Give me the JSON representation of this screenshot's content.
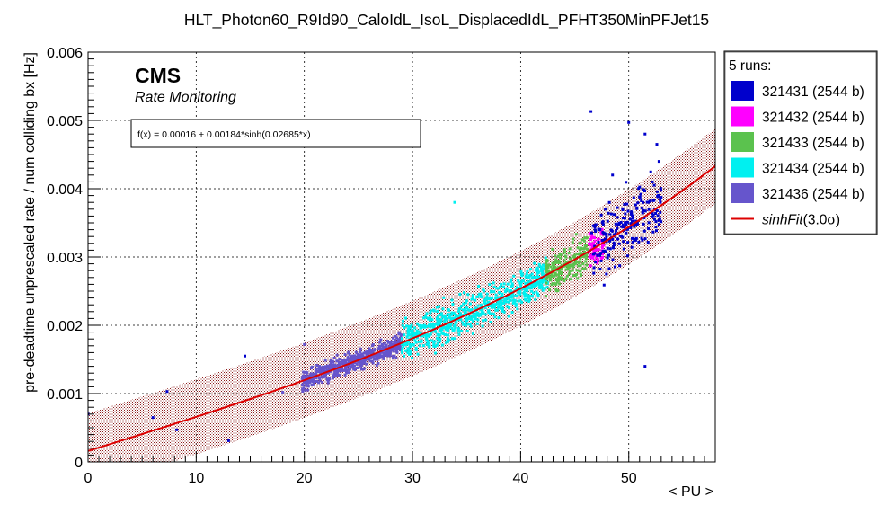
{
  "chart_data": {
    "type": "scatter",
    "title": "HLT_Photon60_R9Id90_CaloIdL_IsoL_DisplacedIdL_PFHT350MinPFJet15",
    "xlabel": "< PU >",
    "ylabel": "pre-deadtime unprescaled rate / num colliding bx [Hz]",
    "xlim": [
      0,
      58
    ],
    "ylim": [
      0,
      0.006
    ],
    "x_ticks": [
      0,
      10,
      20,
      30,
      40,
      50
    ],
    "y_ticks": [
      0,
      0.001,
      0.002,
      0.003,
      0.004,
      0.005,
      0.006
    ],
    "x_tick_labels": [
      "0",
      "10",
      "20",
      "30",
      "40",
      "50"
    ],
    "y_tick_labels": [
      "0",
      "0.001",
      "0.002",
      "0.003",
      "0.004",
      "0.005",
      "0.006"
    ],
    "grid": true,
    "brand": "CMS",
    "subtitle": "Rate Monitoring",
    "fit_label": "f(x) = 0.00016 + 0.00184*sinh(0.02685*x)",
    "fit": {
      "a": 0.00016,
      "b": 0.00184,
      "c": 0.02685,
      "band_halfwidth": 0.00055,
      "x_range": [
        0,
        58
      ]
    },
    "legend": {
      "header": "5 runs:",
      "position": "right",
      "entries": [
        {
          "label": "321431 (2544 b)",
          "color": "#0000cc"
        },
        {
          "label": "321432 (2544 b)",
          "color": "#ff00ff"
        },
        {
          "label": "321433 (2544 b)",
          "color": "#5bc24e"
        },
        {
          "label": "321434 (2544 b)",
          "color": "#00f0f0"
        },
        {
          "label": "321436 (2544 b)",
          "color": "#6655cc"
        }
      ],
      "fit_entry": {
        "name": "sinhFit",
        "sigma": "(3.0σ)",
        "color": "#dd0000"
      }
    },
    "series": [
      {
        "name": "321436 (2544 b)",
        "color": "#6655cc",
        "x_range": [
          19.8,
          29
        ],
        "count": 520,
        "spread": 9e-05
      },
      {
        "name": "321434 (2544 b)",
        "color": "#00f0f0",
        "x_range": [
          29,
          42.5
        ],
        "count": 650,
        "spread": 0.00017
      },
      {
        "name": "321433 (2544 b)",
        "color": "#5bc24e",
        "x_range": [
          42.3,
          46.2
        ],
        "count": 200,
        "spread": 0.00016
      },
      {
        "name": "321432 (2544 b)",
        "color": "#ff00ff",
        "x_range": [
          46.3,
          47.8
        ],
        "count": 70,
        "spread": 0.00016
      },
      {
        "name": "321431 (2544 b)",
        "color": "#0000cc",
        "x_range": [
          46.5,
          53
        ],
        "count": 200,
        "spread": 0.0003
      }
    ],
    "outliers": [
      {
        "x": 0,
        "y": 0.0007,
        "color": "#0000cc"
      },
      {
        "x": 6,
        "y": 0.00065,
        "color": "#0000cc"
      },
      {
        "x": 7.3,
        "y": 0.00103,
        "color": "#0000cc"
      },
      {
        "x": 8.2,
        "y": 0.00047,
        "color": "#0000cc"
      },
      {
        "x": 13,
        "y": 0.00031,
        "color": "#0000cc"
      },
      {
        "x": 14.5,
        "y": 0.00155,
        "color": "#0000cc"
      },
      {
        "x": 18,
        "y": 0.00102,
        "color": "#6655cc"
      },
      {
        "x": 20,
        "y": 0.00172,
        "color": "#6655cc"
      },
      {
        "x": 33.9,
        "y": 0.0038,
        "color": "#00f0f0"
      },
      {
        "x": 46.5,
        "y": 0.00513,
        "color": "#0000cc"
      },
      {
        "x": 50,
        "y": 0.00497,
        "color": "#0000cc"
      },
      {
        "x": 51.5,
        "y": 0.0014,
        "color": "#0000cc"
      },
      {
        "x": 52.6,
        "y": 0.00465,
        "color": "#0000cc"
      },
      {
        "x": 52.8,
        "y": 0.0044,
        "color": "#0000cc"
      },
      {
        "x": 51.5,
        "y": 0.0048,
        "color": "#0000cc"
      },
      {
        "x": 48.5,
        "y": 0.0042,
        "color": "#0000cc"
      }
    ]
  }
}
